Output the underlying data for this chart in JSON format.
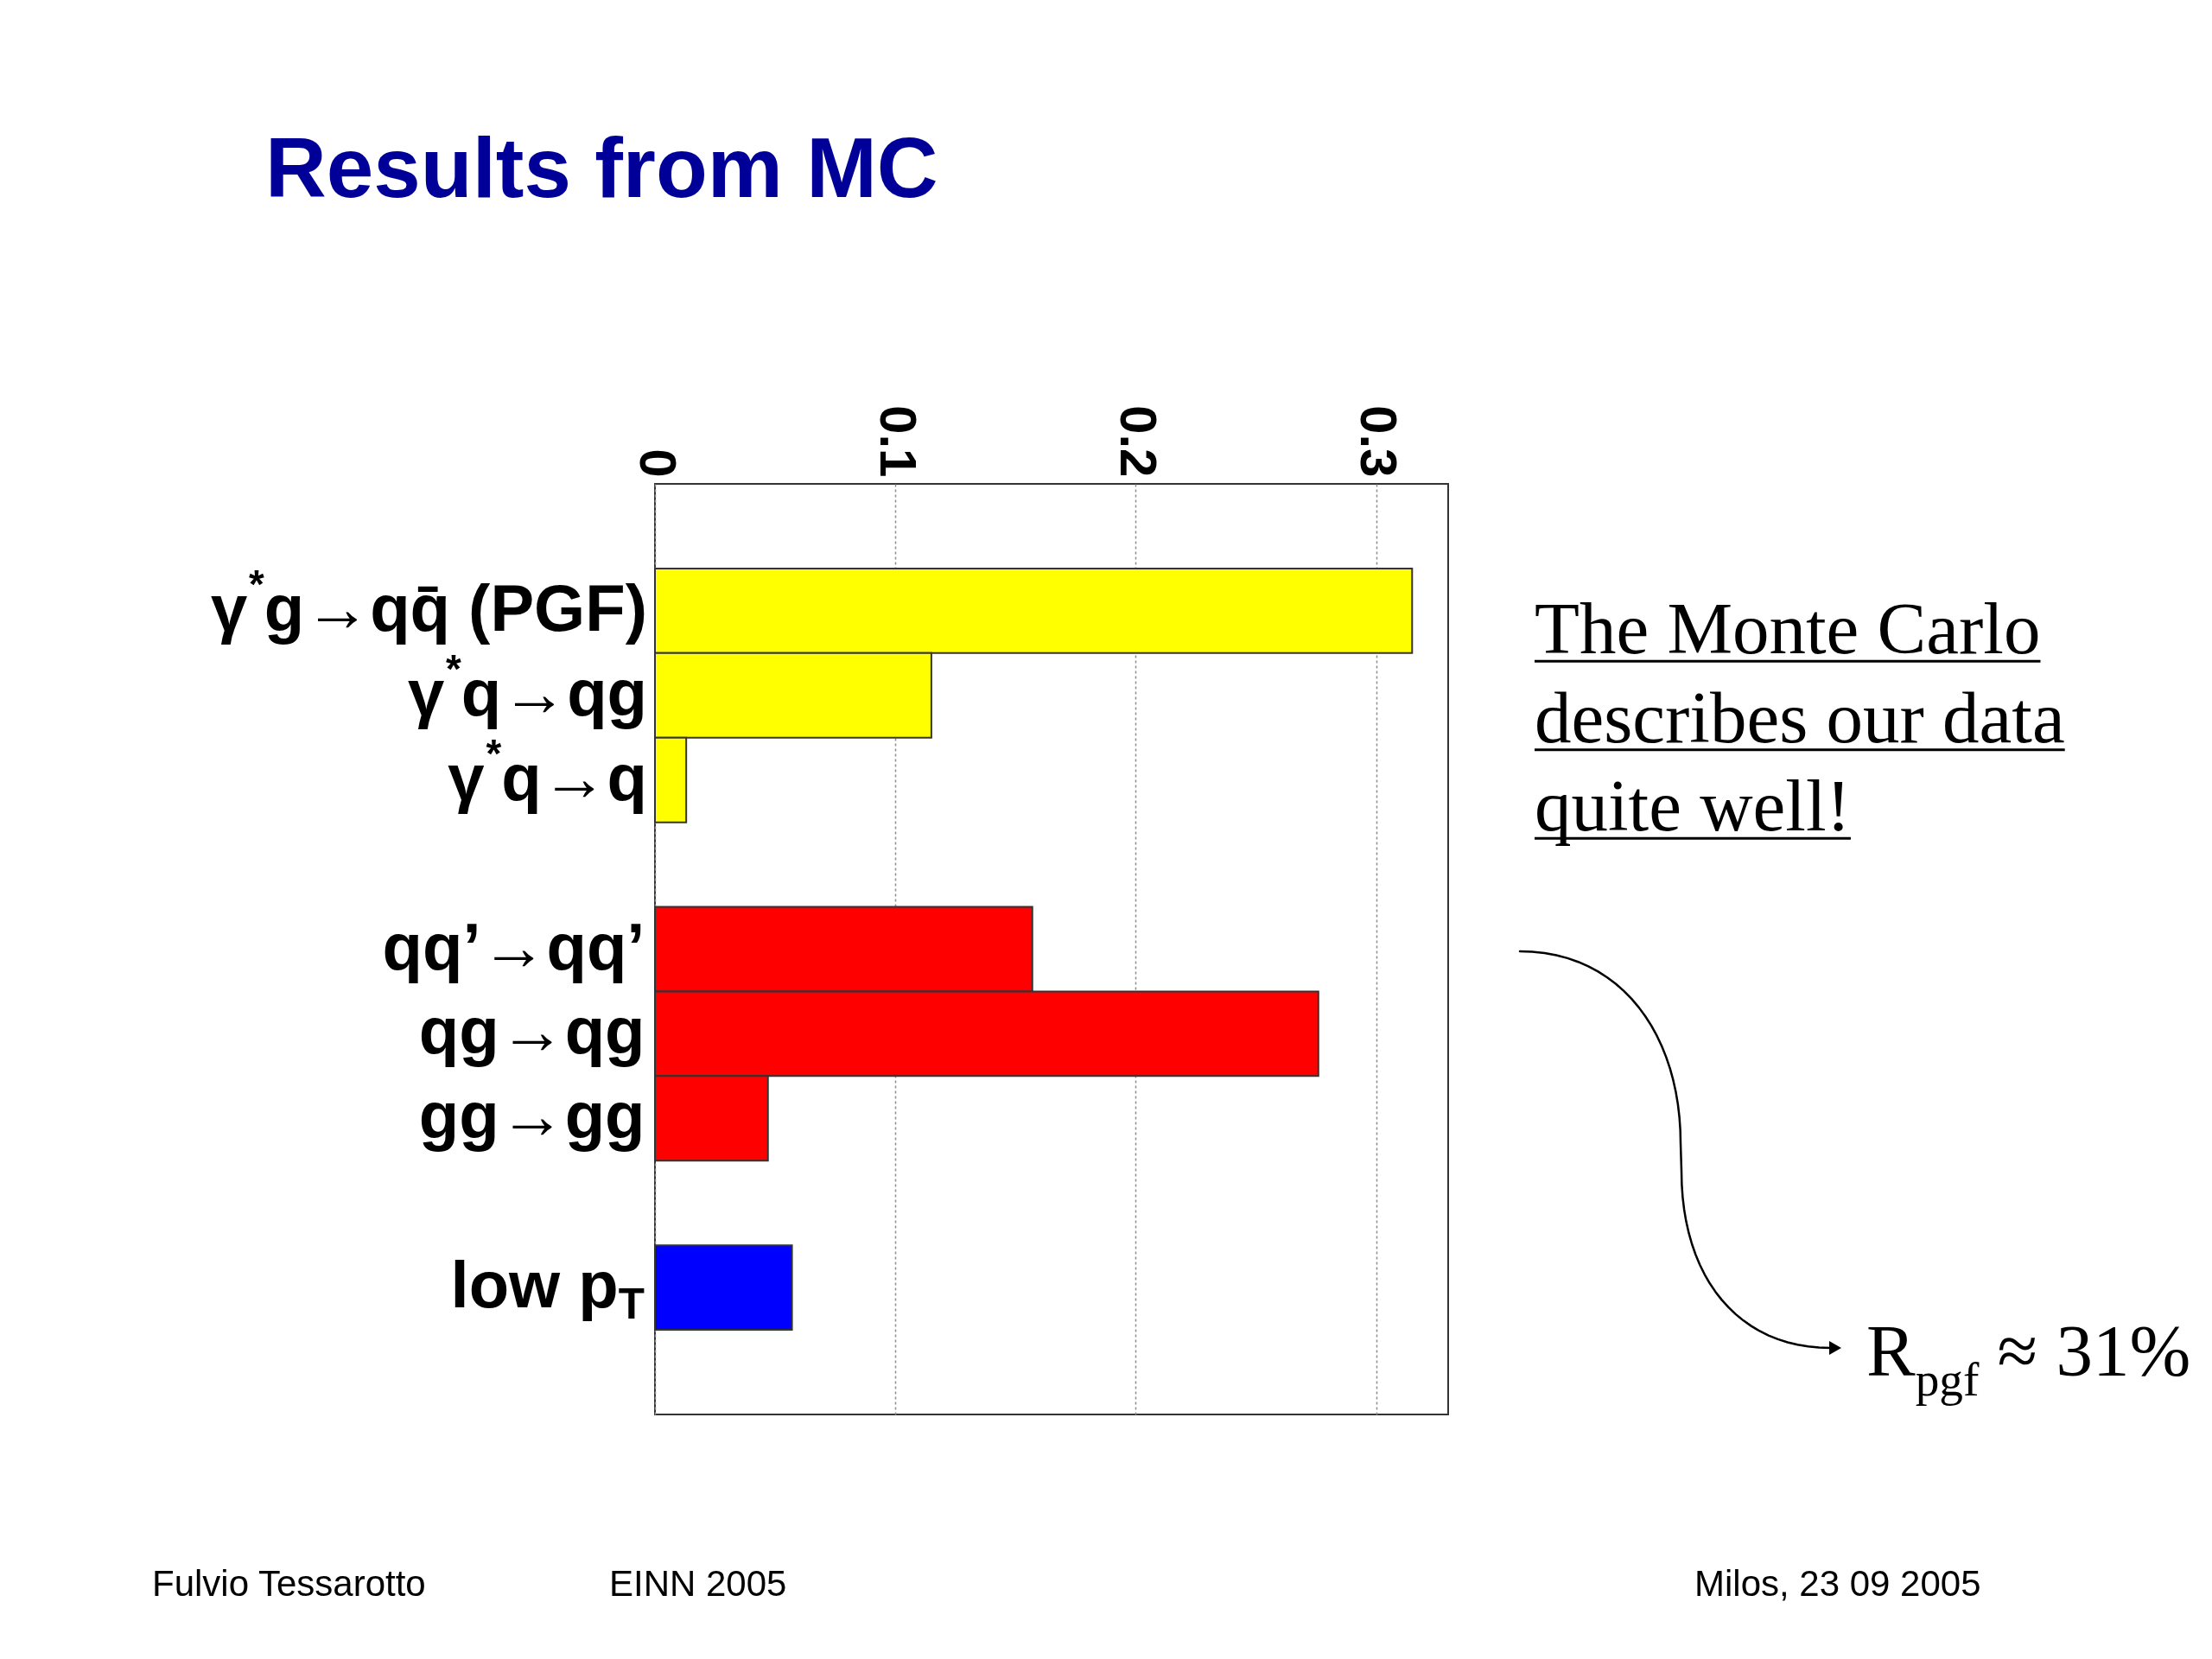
{
  "chart_data": {
    "type": "bar",
    "orientation": "horizontal",
    "title": "Results from MC",
    "categories": [
      null,
      "γ$^{*}$g→qq̄ (PGF)",
      "γ$^{*}$q→qg",
      "γ$^{*}$q→q",
      null,
      "qq’→qq’",
      "qg→qg",
      "gg→gg",
      null,
      "low p$_{T}$",
      null
    ],
    "values": [
      null,
      0.315,
      0.115,
      0.013,
      null,
      0.157,
      0.276,
      0.047,
      null,
      0.057,
      null
    ],
    "colors": [
      null,
      "#ffff00",
      "#ffff00",
      "#ffff00",
      null,
      "#ff0000",
      "#ff0000",
      "#ff0000",
      null,
      "#0000ff",
      null
    ],
    "xlim": [
      0,
      0.33
    ],
    "xticks": [
      0,
      0.1,
      0.2,
      0.3
    ],
    "grid": "x",
    "annotations": [
      "The Monte Carlo\ndescribes our data\nquite well!",
      "R$_{pgf}$ ≈ 31%",
      "Fulvio Tessarotto",
      "EINN 2005",
      "Milos,   23 09 2005"
    ]
  }
}
